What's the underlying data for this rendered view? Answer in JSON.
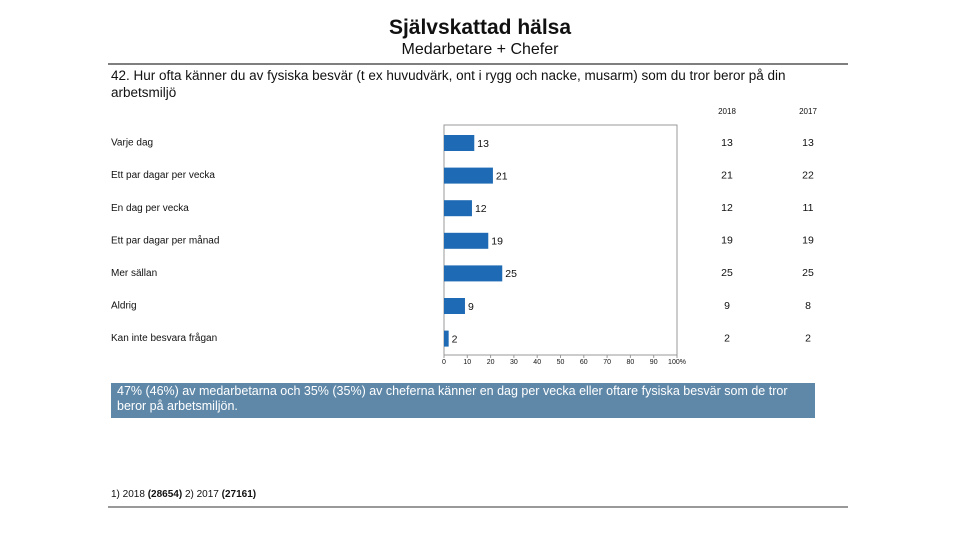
{
  "header": {
    "title": "Självskattad hälsa",
    "subtitle": "Medarbetare + Chefer"
  },
  "question": "42. Hur ofta känner du av fysiska besvär (t ex huvudvärk, ont i rygg och nacke, musarm) som du tror beror på din arbetsmiljö",
  "chart_data": {
    "type": "bar",
    "orientation": "horizontal",
    "categories": [
      "Varje dag",
      "Ett par dagar per vecka",
      "En dag per vecka",
      "Ett par dagar per månad",
      "Mer sällan",
      "Aldrig",
      "Kan inte besvara frågan"
    ],
    "values": [
      13,
      21,
      12,
      19,
      25,
      9,
      2
    ],
    "color": "#1f6ab4",
    "xlim": [
      0,
      100
    ],
    "xticks": [
      0,
      10,
      20,
      30,
      40,
      50,
      60,
      70,
      80,
      90,
      {
        "value": 100,
        "label": "100%"
      }
    ],
    "grid": false
  },
  "table": {
    "columns": [
      "2018",
      "2017"
    ],
    "col2017": [
      13,
      22,
      11,
      19,
      25,
      8,
      2
    ]
  },
  "note": "47% (46%) av medarbetarna och 35% (35%) av cheferna känner en dag per vecka eller oftare fysiska besvär som de tror beror på arbetsmiljön.",
  "footnote": [
    "1) 2018 ",
    "(28654)",
    "   2) 2017 ",
    "(27161)"
  ]
}
